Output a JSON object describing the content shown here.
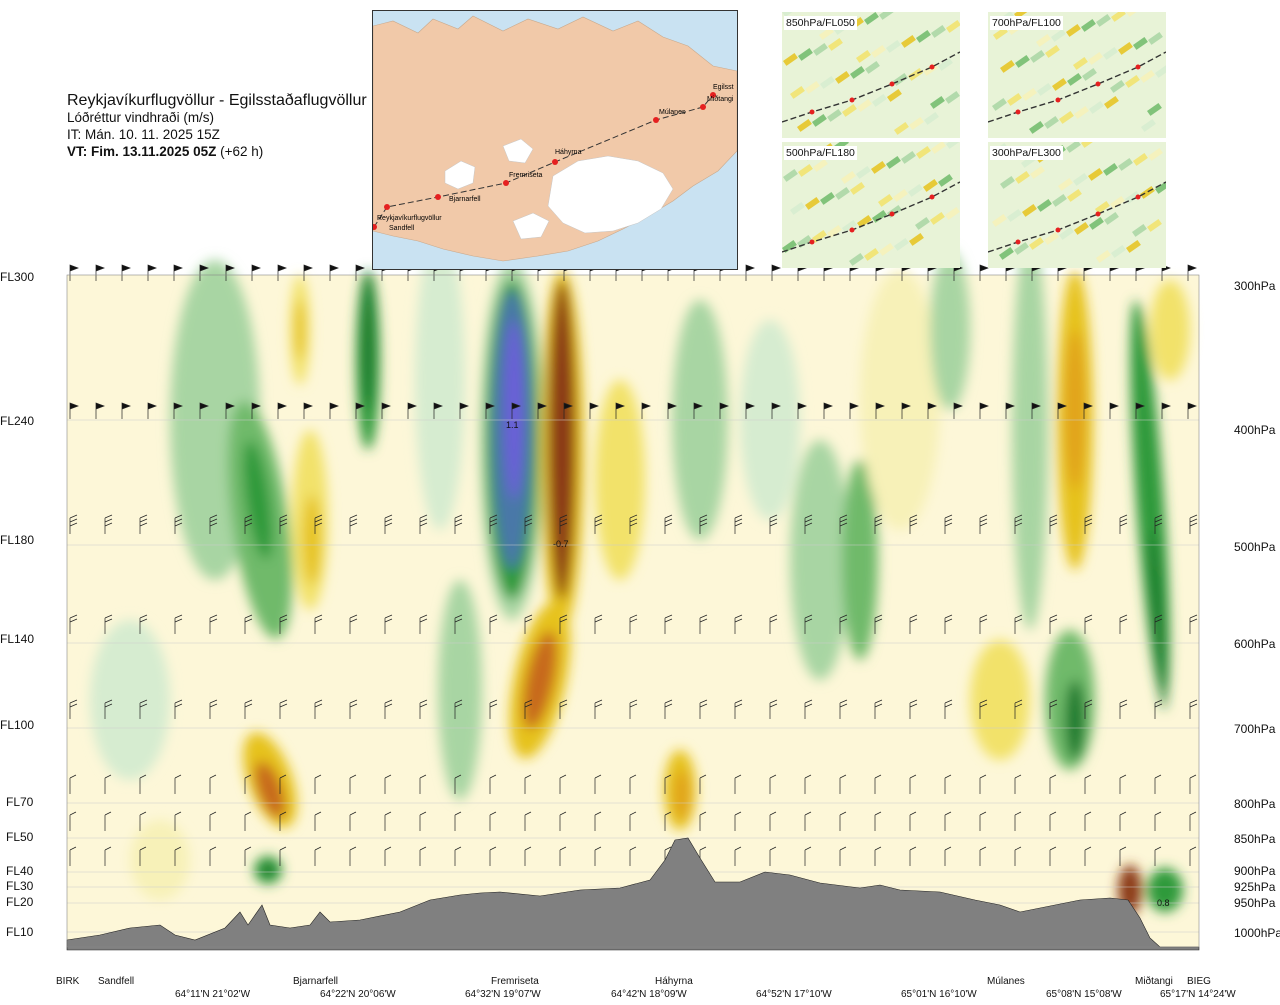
{
  "title": {
    "route": "Reykjavíkurflugvöllur - Egilsstaðaflugvöllur",
    "variable": "Lóðréttur vindhraði (m/s)",
    "issue_time": "IT: Mán. 10. 11. 2025 15Z",
    "valid_time_label": "VT: Fim. 13.11.2025 05Z",
    "valid_offset": "(+62 h)"
  },
  "route_map": {
    "places": [
      "Reykjavíkurflugvöllur",
      "Sandfell",
      "Bjarnarfell",
      "Fremriseta",
      "Háhyrna",
      "Múlanes",
      "Egilsst",
      "Miðtangi"
    ],
    "colors": {
      "sea": "#c9e2f2",
      "land": "#f1c9a9",
      "ice": "#ffffff",
      "route": "#333333",
      "point": "#e52020"
    }
  },
  "mini_maps": [
    {
      "label": "850hPa/FL050"
    },
    {
      "label": "700hPa/FL100"
    },
    {
      "label": "500hPa/FL180"
    },
    {
      "label": "300hPa/FL300"
    }
  ],
  "flight_levels": [
    "FL300",
    "FL240",
    "FL180",
    "FL140",
    "FL100",
    "FL70",
    "FL50",
    "FL40",
    "FL30",
    "FL20",
    "FL10"
  ],
  "pressure_levels": [
    "300hPa",
    "400hPa",
    "500hPa",
    "600hPa",
    "700hPa",
    "800hPa",
    "850hPa",
    "900hPa",
    "925hPa",
    "950hPa",
    "1000hPa"
  ],
  "places": [
    "BIRK",
    "Sandfell",
    "Bjarnarfell",
    "Fremriseta",
    "Háhyrna",
    "Múlanes",
    "Miðtangi",
    "BIEG"
  ],
  "coordinates": [
    "64°11'N 21°02'W",
    "64°22'N 20°06'W",
    "64°32'N 19°07'W",
    "64°42'N 18°09'W",
    "64°52'N 17°10'W",
    "65°01'N 16°10'W",
    "65°08'N 15°08'W",
    "65°17'N 14°24'W"
  ],
  "annotations": [
    "1.1",
    "-0.7",
    "0.8"
  ],
  "colors": {
    "updraft": [
      "#d6ecd0",
      "#a8d5a3",
      "#6fba6a",
      "#2e9a3a",
      "#1d7b2f",
      "#4a78a8",
      "#6a5fd8"
    ],
    "downdraft": [
      "#f7f1b8",
      "#f2e26a",
      "#e6c21c",
      "#e1a21c",
      "#c7691e",
      "#8b3a12"
    ],
    "neutral": "#fdf7d8",
    "terrain": "#808080"
  },
  "chart_data": {
    "type": "heatmap",
    "title": "Lóðréttur vindhraði (m/s)",
    "xlabel": "",
    "ylabel": "",
    "x_categories": [
      "BIRK",
      "Sandfell",
      "Bjarnarfell",
      "Fremriseta",
      "Háhyrna",
      "Múlanes",
      "Miðtangi",
      "BIEG"
    ],
    "y_levels_hPa": [
      300,
      400,
      500,
      600,
      700,
      800,
      850,
      900,
      925,
      950,
      1000
    ],
    "annotated_values": [
      {
        "label": "1.1",
        "level_hPa": 400,
        "near": "Fremriseta"
      },
      {
        "label": "-0.7",
        "level_hPa": 500,
        "near": "Fremriseta"
      },
      {
        "label": "0.8",
        "level_hPa": 950,
        "near": "Miðtangi"
      }
    ]
  }
}
